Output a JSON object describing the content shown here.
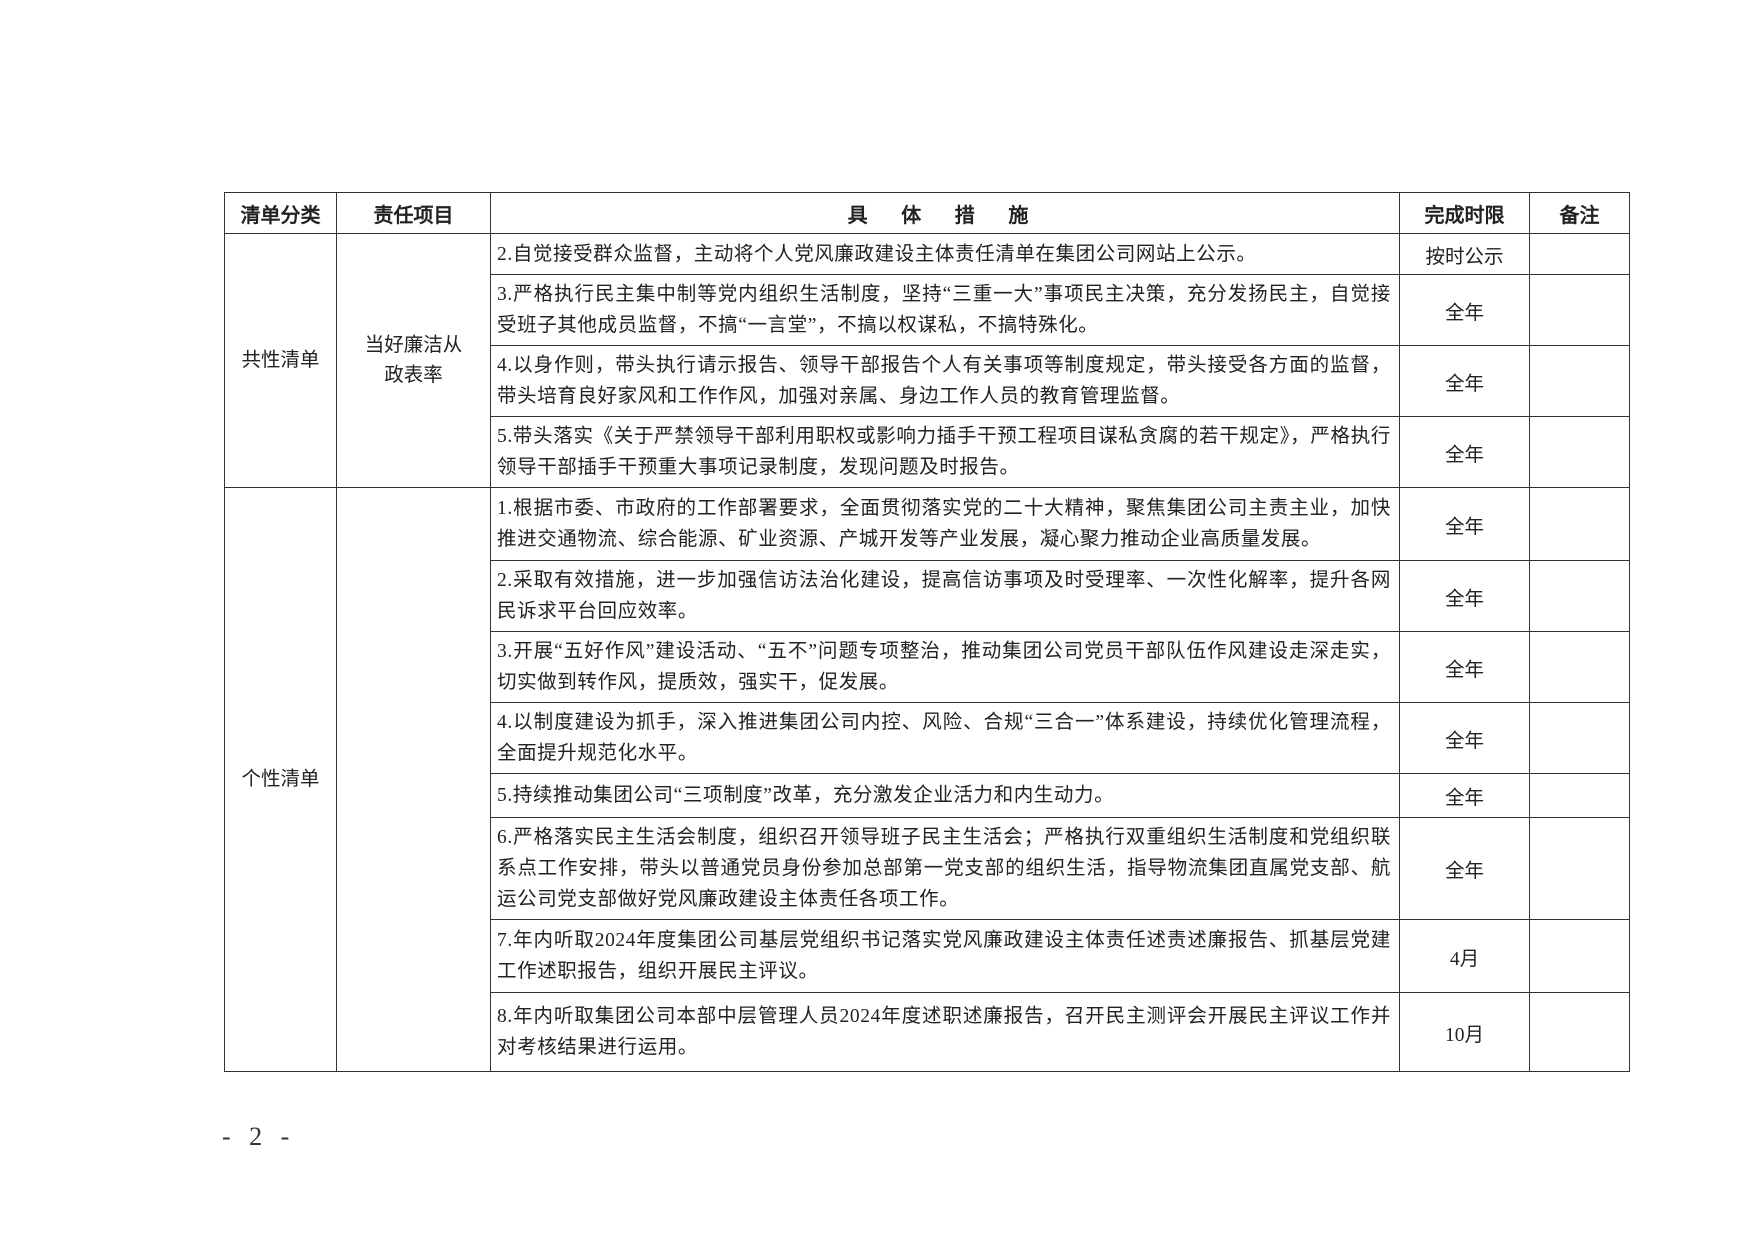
{
  "table": {
    "headers": [
      "清单分类",
      "责任项目",
      "具 体 措 施",
      "完成时限",
      "备注"
    ],
    "groups": [
      {
        "category": "共性清单",
        "project": "当好廉洁从政表率",
        "rows": [
          {
            "measure": "2.自觉接受群众监督，主动将个人党风廉政建设主体责任清单在集团公司网站上公示。",
            "deadline": "按时公示",
            "remark": ""
          },
          {
            "measure": "3.严格执行民主集中制等党内组织生活制度，坚持“三重一大”事项民主决策，充分发扬民主，自觉接受班子其他成员监督，不搞“一言堂”，不搞以权谋私，不搞特殊化。",
            "deadline": "全年",
            "remark": ""
          },
          {
            "measure": "4.以身作则，带头执行请示报告、领导干部报告个人有关事项等制度规定，带头接受各方面的监督，带头培育良好家风和工作作风，加强对亲属、身边工作人员的教育管理监督。",
            "deadline": "全年",
            "remark": ""
          },
          {
            "measure": "5.带头落实《关于严禁领导干部利用职权或影响力插手干预工程项目谋私贪腐的若干规定》，严格执行领导干部插手干预重大事项记录制度，发现问题及时报告。",
            "deadline": "全年",
            "remark": ""
          }
        ]
      },
      {
        "category": "个性清单",
        "project": "",
        "rows": [
          {
            "measure": "1.根据市委、市政府的工作部署要求，全面贯彻落实党的二十大精神，聚焦集团公司主责主业，加快推进交通物流、综合能源、矿业资源、产城开发等产业发展，凝心聚力推动企业高质量发展。",
            "deadline": "全年",
            "remark": ""
          },
          {
            "measure": "2.采取有效措施，进一步加强信访法治化建设，提高信访事项及时受理率、一次性化解率，提升各网民诉求平台回应效率。",
            "deadline": "全年",
            "remark": ""
          },
          {
            "measure": "3.开展“五好作风”建设活动、“五不”问题专项整治，推动集团公司党员干部队伍作风建设走深走实，切实做到转作风，提质效，强实干，促发展。",
            "deadline": "全年",
            "remark": ""
          },
          {
            "measure": "4.以制度建设为抓手，深入推进集团公司内控、风险、合规“三合一”体系建设，持续优化管理流程，全面提升规范化水平。",
            "deadline": "全年",
            "remark": ""
          },
          {
            "measure": "5.持续推动集团公司“三项制度”改革，充分激发企业活力和内生动力。",
            "deadline": "全年",
            "remark": ""
          },
          {
            "measure": "6.严格落实民主生活会制度，组织召开领导班子民主生活会；严格执行双重组织生活制度和党组织联系点工作安排，带头以普通党员身份参加总部第一党支部的组织生活，指导物流集团直属党支部、航运公司党支部做好党风廉政建设主体责任各项工作。",
            "deadline": "全年",
            "remark": ""
          },
          {
            "measure": "7.年内听取2024年度集团公司基层党组织书记落实党风廉政建设主体责任述责述廉报告、抓基层党建工作述职报告，组织开展民主评议。",
            "deadline": "4月",
            "remark": ""
          },
          {
            "measure": "8.年内听取集团公司本部中层管理人员2024年度述职述廉报告，召开民主测评会开展民主评议工作并对考核结果进行运用。",
            "deadline": "10月",
            "remark": ""
          }
        ]
      }
    ]
  },
  "page_number": "- 2 -"
}
